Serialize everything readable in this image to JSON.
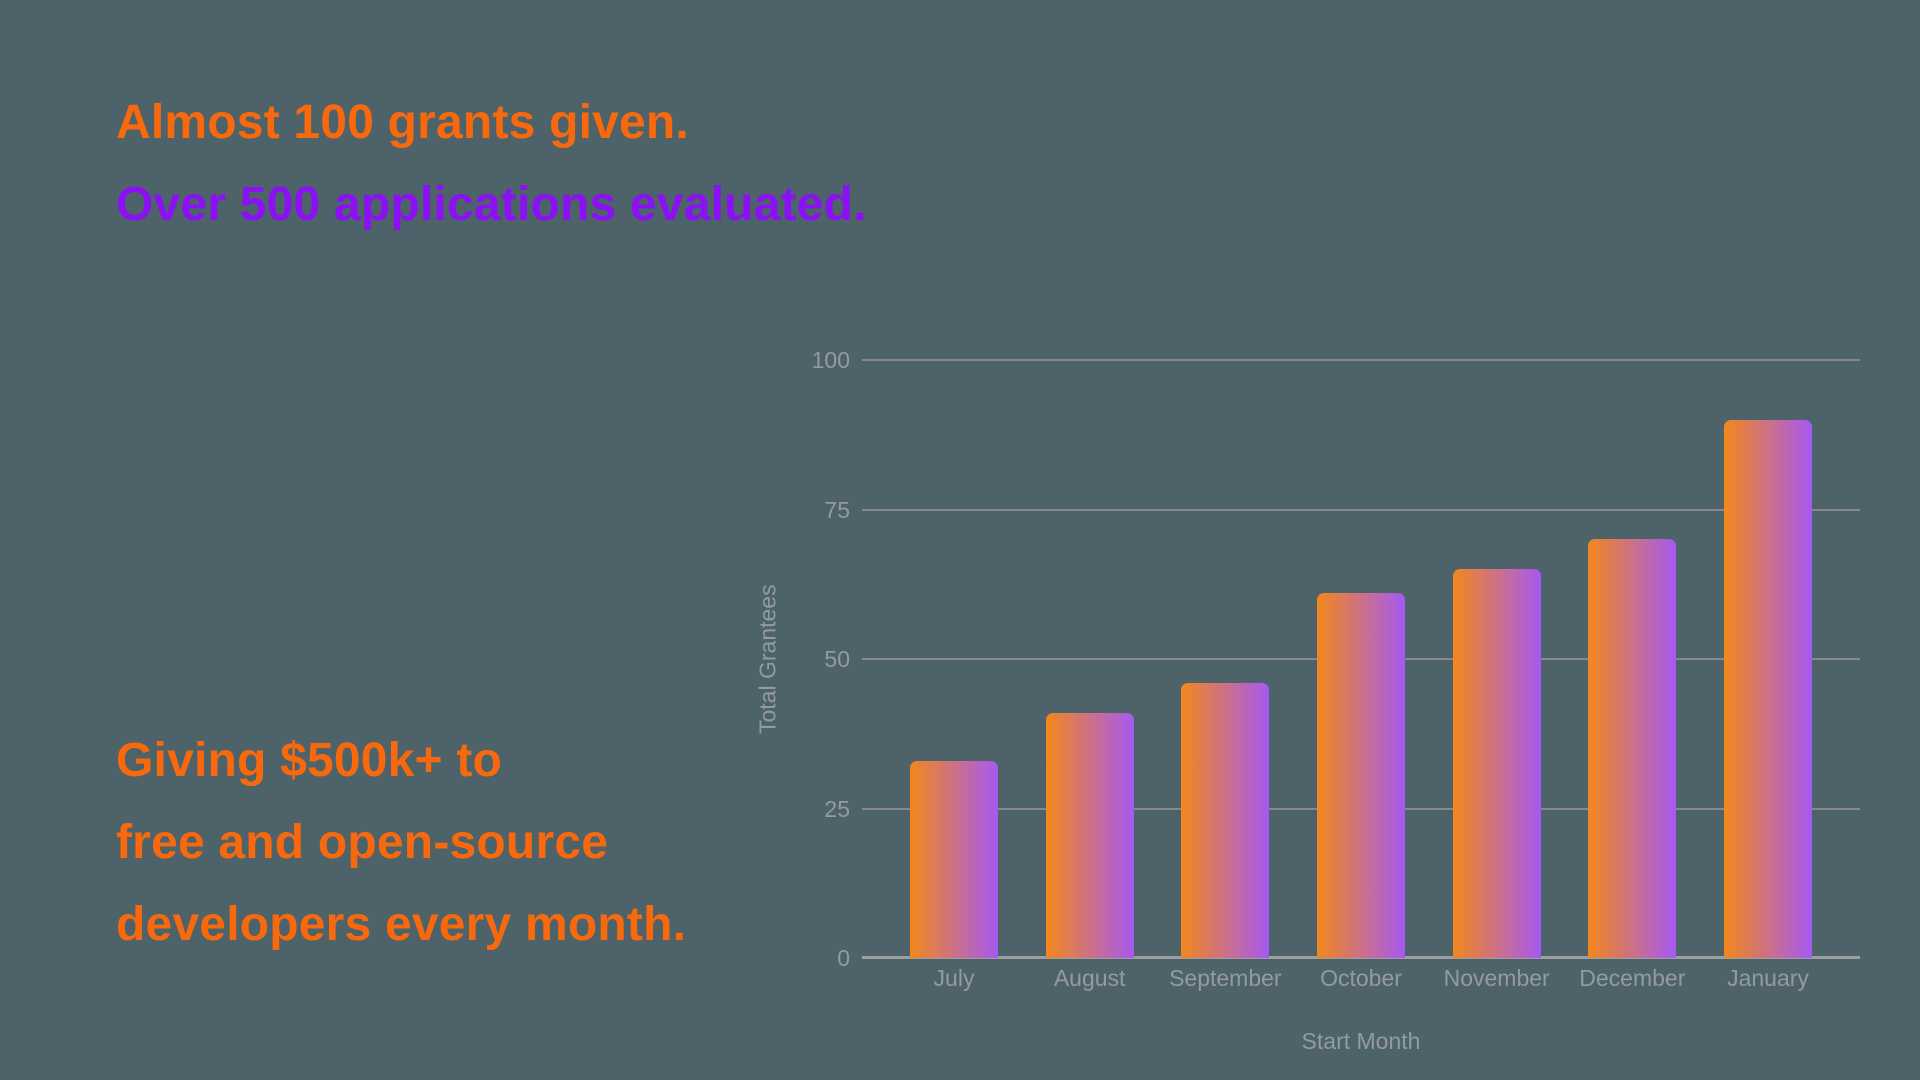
{
  "headline": {
    "line1": "Almost 100 grants given.",
    "line2": "Over 500 applications evaluated."
  },
  "message": {
    "line1": "Giving $500k+ to",
    "line2": "free and open-source",
    "line3": "developers every month."
  },
  "colors": {
    "background": "#4D6269",
    "headline_orange": "#F8690D",
    "headline_purple": "#8C10F5",
    "bar_gradient_start": "#F2881C",
    "bar_gradient_end": "#A659F1",
    "gridline": "#9A94A0",
    "axis_line": "#9C9FA1",
    "axis_label": "#939B9F"
  },
  "chart_data": {
    "type": "bar",
    "categories": [
      "July",
      "August",
      "September",
      "October",
      "November",
      "December",
      "January"
    ],
    "values": [
      33,
      41,
      46,
      61,
      65,
      70,
      90
    ],
    "title": "",
    "xlabel": "Start Month",
    "ylabel": "Total Grantees",
    "ylim": [
      0,
      100
    ],
    "yticks": [
      0,
      25,
      50,
      75,
      100
    ],
    "grid": true,
    "legend_position": "none",
    "bar_corner_radius": "rounded-top"
  }
}
